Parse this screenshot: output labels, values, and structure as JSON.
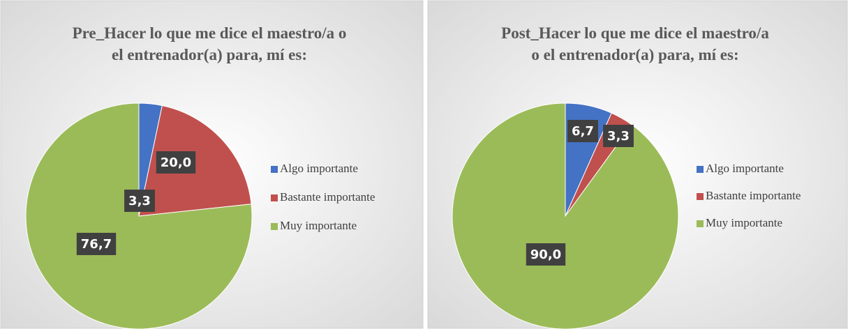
{
  "chart_data": [
    {
      "type": "pie",
      "title": [
        "Pre_Hacer lo que me dice el maestro/a o",
        "el entrenador(a) para, mí es:"
      ],
      "categories": [
        "Algo importante",
        "Bastante importante",
        "Muy importante"
      ],
      "values": [
        3.3,
        20.0,
        76.7
      ],
      "value_labels": [
        "3,3",
        "20,0",
        "76,7"
      ],
      "colors": [
        "#4472c4",
        "#c0504d",
        "#9bbb59"
      ],
      "legend": "right"
    },
    {
      "type": "pie",
      "title": [
        "Post_Hacer lo que me dice el maestro/a",
        "o el entrenador(a) para, mí es:"
      ],
      "categories": [
        "Algo importante",
        "Bastante importante",
        "Muy importante"
      ],
      "values": [
        6.7,
        3.3,
        90.0
      ],
      "value_labels": [
        "6,7",
        "3,3",
        "90,0"
      ],
      "colors": [
        "#4472c4",
        "#c0504d",
        "#9bbb59"
      ],
      "legend": "right"
    }
  ]
}
